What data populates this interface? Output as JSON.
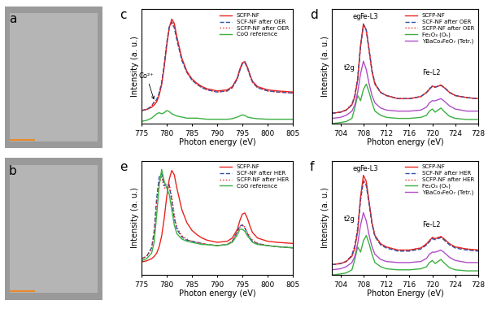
{
  "chart_data": [
    {
      "type": "image",
      "panel": "a"
    },
    {
      "type": "image",
      "panel": "b"
    },
    {
      "type": "line",
      "panel": "c",
      "x_label": "Photon energy (eV)",
      "y_label": "Intensity (a. u.)",
      "xlim": [
        775,
        805
      ],
      "xticks": [
        775,
        780,
        785,
        790,
        795,
        800,
        805
      ],
      "ylim": [
        0,
        1.05
      ],
      "tick_labels": "x",
      "legend": "upper right",
      "annotations": [
        "Co²⁺"
      ],
      "x": [
        775,
        776,
        777,
        777.5,
        778,
        778.5,
        779,
        779.5,
        780,
        780.5,
        781,
        781.5,
        782,
        783,
        784,
        785,
        786,
        787,
        788,
        790,
        792,
        793,
        794,
        794.5,
        795,
        795.5,
        796,
        796.5,
        797,
        798,
        800,
        802,
        805
      ],
      "series": [
        {
          "name": "SCFP-NF",
          "color": "#e8251f",
          "line_style": "solid",
          "values": [
            0.12,
            0.13,
            0.15,
            0.17,
            0.2,
            0.26,
            0.36,
            0.52,
            0.72,
            0.88,
            0.96,
            0.92,
            0.8,
            0.6,
            0.48,
            0.41,
            0.37,
            0.34,
            0.32,
            0.3,
            0.31,
            0.34,
            0.42,
            0.5,
            0.56,
            0.57,
            0.52,
            0.45,
            0.39,
            0.34,
            0.31,
            0.3,
            0.29
          ]
        },
        {
          "name": "SCF-NF after OER",
          "color": "#2b4fa8",
          "line_style": "dashed",
          "values": [
            0.12,
            0.13,
            0.16,
            0.2,
            0.22,
            0.28,
            0.38,
            0.54,
            0.74,
            0.89,
            0.93,
            0.88,
            0.77,
            0.58,
            0.47,
            0.4,
            0.36,
            0.33,
            0.31,
            0.29,
            0.3,
            0.33,
            0.41,
            0.49,
            0.55,
            0.56,
            0.51,
            0.44,
            0.38,
            0.33,
            0.3,
            0.29,
            0.28
          ]
        },
        {
          "name": "SCFP-NF after OER",
          "color": "#e8251f",
          "line_style": "dotted",
          "values": [
            0.12,
            0.13,
            0.16,
            0.19,
            0.21,
            0.27,
            0.37,
            0.53,
            0.73,
            0.88,
            0.94,
            0.9,
            0.78,
            0.59,
            0.47,
            0.4,
            0.36,
            0.33,
            0.31,
            0.29,
            0.3,
            0.33,
            0.41,
            0.49,
            0.55,
            0.56,
            0.51,
            0.44,
            0.38,
            0.33,
            0.3,
            0.29,
            0.28
          ]
        },
        {
          "name": "CoO reference",
          "color": "#3cb043",
          "line_style": "solid",
          "values": [
            0.02,
            0.03,
            0.05,
            0.07,
            0.09,
            0.1,
            0.09,
            0.1,
            0.12,
            0.11,
            0.09,
            0.08,
            0.07,
            0.06,
            0.05,
            0.05,
            0.05,
            0.045,
            0.04,
            0.04,
            0.04,
            0.045,
            0.06,
            0.07,
            0.08,
            0.075,
            0.06,
            0.055,
            0.05,
            0.045,
            0.04,
            0.04,
            0.04
          ]
        }
      ]
    },
    {
      "type": "line",
      "panel": "d",
      "x_label": "Photon energy (eV)",
      "y_label": "Intensity (a. u.)",
      "xlim": [
        702.5,
        728
      ],
      "xticks": [
        704,
        708,
        712,
        716,
        720,
        724,
        728
      ],
      "ylim": [
        0,
        1.1
      ],
      "tick_labels": "x",
      "legend": "upper right",
      "annotations": [
        "t2g",
        "eg",
        "Fe-L3",
        "Fe-L2"
      ],
      "x": [
        702.5,
        704,
        705,
        706,
        706.5,
        707,
        707.5,
        708,
        708.5,
        709,
        709.5,
        710,
        711,
        712,
        714,
        716,
        718,
        719,
        719.5,
        720,
        720.5,
        721,
        721.5,
        722,
        723,
        724,
        726,
        728
      ],
      "series": [
        {
          "name": "SCFP-NF",
          "color": "#e8251f",
          "line_style": "solid",
          "values": [
            0.1,
            0.11,
            0.13,
            0.18,
            0.26,
            0.42,
            0.75,
            0.96,
            0.9,
            0.7,
            0.5,
            0.38,
            0.3,
            0.27,
            0.24,
            0.24,
            0.26,
            0.3,
            0.33,
            0.36,
            0.35,
            0.36,
            0.37,
            0.35,
            0.3,
            0.27,
            0.25,
            0.24
          ]
        },
        {
          "name": "SCF-NF after OER",
          "color": "#2b4fa8",
          "line_style": "dashed",
          "values": [
            0.1,
            0.11,
            0.13,
            0.18,
            0.27,
            0.43,
            0.74,
            0.95,
            0.9,
            0.71,
            0.51,
            0.39,
            0.3,
            0.27,
            0.24,
            0.24,
            0.26,
            0.3,
            0.33,
            0.36,
            0.35,
            0.36,
            0.37,
            0.35,
            0.3,
            0.27,
            0.25,
            0.24
          ]
        },
        {
          "name": "SCFP-NF after OER",
          "color": "#e8251f",
          "line_style": "dotted",
          "values": [
            0.1,
            0.11,
            0.13,
            0.19,
            0.27,
            0.44,
            0.75,
            0.95,
            0.89,
            0.7,
            0.5,
            0.38,
            0.3,
            0.27,
            0.24,
            0.24,
            0.26,
            0.3,
            0.34,
            0.36,
            0.35,
            0.36,
            0.37,
            0.35,
            0.3,
            0.27,
            0.25,
            0.24
          ]
        },
        {
          "name": "Fe₂O₃ (Oₕ)",
          "color": "#3cb043",
          "line_style": "solid",
          "values": [
            0.0,
            0.01,
            0.02,
            0.05,
            0.15,
            0.27,
            0.22,
            0.33,
            0.38,
            0.3,
            0.2,
            0.12,
            0.08,
            0.06,
            0.05,
            0.05,
            0.06,
            0.08,
            0.12,
            0.14,
            0.11,
            0.13,
            0.15,
            0.12,
            0.07,
            0.05,
            0.04,
            0.04
          ]
        },
        {
          "name": "YBaCo₃FeO₇ (Tetr.)",
          "color": "#b04fc8",
          "line_style": "solid",
          "values": [
            0.05,
            0.06,
            0.08,
            0.12,
            0.18,
            0.3,
            0.48,
            0.6,
            0.52,
            0.38,
            0.27,
            0.2,
            0.15,
            0.13,
            0.12,
            0.12,
            0.13,
            0.16,
            0.2,
            0.22,
            0.22,
            0.23,
            0.24,
            0.22,
            0.17,
            0.14,
            0.12,
            0.12
          ]
        }
      ]
    },
    {
      "type": "line",
      "panel": "e",
      "x_label": "Photon energy (eV)",
      "y_label": "Intensity (a. u.)",
      "xlim": [
        775,
        805
      ],
      "xticks": [
        775,
        780,
        785,
        790,
        795,
        800,
        805
      ],
      "ylim": [
        0,
        1.05
      ],
      "tick_labels": "x",
      "legend": "upper right",
      "x": [
        775,
        776,
        777,
        777.5,
        778,
        778.5,
        779,
        779.5,
        780,
        780.5,
        781,
        781.5,
        782,
        783,
        784,
        785,
        786,
        787,
        788,
        790,
        792,
        793,
        794,
        794.5,
        795,
        795.5,
        796,
        796.5,
        797,
        798,
        800,
        802,
        805
      ],
      "series": [
        {
          "name": "SCFP-NF",
          "color": "#e8251f",
          "line_style": "solid",
          "values": [
            0.12,
            0.13,
            0.15,
            0.17,
            0.2,
            0.26,
            0.36,
            0.52,
            0.72,
            0.88,
            0.96,
            0.92,
            0.8,
            0.6,
            0.48,
            0.41,
            0.37,
            0.34,
            0.32,
            0.3,
            0.31,
            0.34,
            0.42,
            0.5,
            0.56,
            0.57,
            0.52,
            0.45,
            0.39,
            0.34,
            0.31,
            0.3,
            0.29
          ]
        },
        {
          "name": "SCF-NF after HER",
          "color": "#2b4fa8",
          "line_style": "dashed",
          "values": [
            0.15,
            0.17,
            0.25,
            0.4,
            0.7,
            0.9,
            0.93,
            0.82,
            0.84,
            0.82,
            0.68,
            0.52,
            0.42,
            0.35,
            0.32,
            0.31,
            0.3,
            0.29,
            0.28,
            0.27,
            0.28,
            0.31,
            0.4,
            0.45,
            0.46,
            0.43,
            0.38,
            0.34,
            0.31,
            0.29,
            0.27,
            0.26,
            0.25
          ]
        },
        {
          "name": "SCFP-NF after HER",
          "color": "#e8251f",
          "line_style": "dotted",
          "values": [
            0.15,
            0.17,
            0.24,
            0.38,
            0.66,
            0.85,
            0.9,
            0.8,
            0.8,
            0.83,
            0.72,
            0.55,
            0.44,
            0.36,
            0.33,
            0.31,
            0.3,
            0.29,
            0.28,
            0.27,
            0.28,
            0.31,
            0.39,
            0.44,
            0.46,
            0.44,
            0.39,
            0.35,
            0.32,
            0.29,
            0.27,
            0.26,
            0.25
          ]
        },
        {
          "name": "CoO reference",
          "color": "#3cb043",
          "line_style": "solid",
          "values": [
            0.13,
            0.15,
            0.2,
            0.3,
            0.55,
            0.82,
            0.97,
            0.86,
            0.8,
            0.74,
            0.6,
            0.46,
            0.38,
            0.33,
            0.31,
            0.3,
            0.29,
            0.28,
            0.28,
            0.27,
            0.28,
            0.3,
            0.37,
            0.42,
            0.42,
            0.4,
            0.36,
            0.33,
            0.3,
            0.28,
            0.27,
            0.26,
            0.25
          ]
        }
      ]
    },
    {
      "type": "line",
      "panel": "f",
      "x_label": "Photon Energy (eV)",
      "y_label": "Intensity (a. u.)",
      "xlim": [
        702.5,
        728
      ],
      "xticks": [
        704,
        708,
        712,
        716,
        720,
        724,
        728
      ],
      "ylim": [
        0,
        1.1
      ],
      "tick_labels": "x",
      "legend": "upper right",
      "annotations": [
        "t2g",
        "eg",
        "Fe-L3",
        "Fe-L2"
      ],
      "x": [
        702.5,
        704,
        705,
        706,
        706.5,
        707,
        707.5,
        708,
        708.5,
        709,
        709.5,
        710,
        711,
        712,
        714,
        716,
        718,
        719,
        719.5,
        720,
        720.5,
        721,
        721.5,
        722,
        723,
        724,
        726,
        728
      ],
      "series": [
        {
          "name": "SCFP-NF",
          "color": "#e8251f",
          "line_style": "solid",
          "values": [
            0.1,
            0.11,
            0.13,
            0.18,
            0.26,
            0.42,
            0.75,
            0.96,
            0.9,
            0.7,
            0.5,
            0.38,
            0.3,
            0.27,
            0.24,
            0.24,
            0.26,
            0.3,
            0.33,
            0.36,
            0.35,
            0.36,
            0.37,
            0.35,
            0.3,
            0.27,
            0.25,
            0.24
          ]
        },
        {
          "name": "SCF-NF after HER",
          "color": "#2b4fa8",
          "line_style": "dashed",
          "values": [
            0.1,
            0.11,
            0.13,
            0.19,
            0.28,
            0.44,
            0.72,
            0.9,
            0.86,
            0.68,
            0.49,
            0.37,
            0.29,
            0.26,
            0.23,
            0.23,
            0.25,
            0.29,
            0.32,
            0.35,
            0.34,
            0.35,
            0.36,
            0.34,
            0.29,
            0.26,
            0.24,
            0.23
          ]
        },
        {
          "name": "SCFP-NF after HER",
          "color": "#e8251f",
          "line_style": "dotted",
          "values": [
            0.1,
            0.11,
            0.13,
            0.19,
            0.28,
            0.45,
            0.74,
            0.92,
            0.87,
            0.69,
            0.5,
            0.38,
            0.3,
            0.27,
            0.24,
            0.24,
            0.26,
            0.3,
            0.33,
            0.36,
            0.35,
            0.36,
            0.37,
            0.35,
            0.3,
            0.27,
            0.25,
            0.24
          ]
        },
        {
          "name": "Fe₂O₃ (Oₕ)",
          "color": "#3cb043",
          "line_style": "solid",
          "values": [
            0.0,
            0.01,
            0.02,
            0.05,
            0.15,
            0.27,
            0.22,
            0.33,
            0.38,
            0.3,
            0.2,
            0.12,
            0.08,
            0.06,
            0.05,
            0.05,
            0.06,
            0.08,
            0.12,
            0.14,
            0.11,
            0.13,
            0.15,
            0.12,
            0.07,
            0.05,
            0.04,
            0.04
          ]
        },
        {
          "name": "YBaCo₃FeO₇ (Tetr.)",
          "color": "#b04fc8",
          "line_style": "solid",
          "values": [
            0.05,
            0.06,
            0.08,
            0.12,
            0.18,
            0.3,
            0.48,
            0.6,
            0.52,
            0.38,
            0.27,
            0.2,
            0.15,
            0.13,
            0.12,
            0.12,
            0.13,
            0.16,
            0.2,
            0.22,
            0.22,
            0.23,
            0.24,
            0.22,
            0.17,
            0.14,
            0.12,
            0.12
          ]
        }
      ]
    }
  ]
}
